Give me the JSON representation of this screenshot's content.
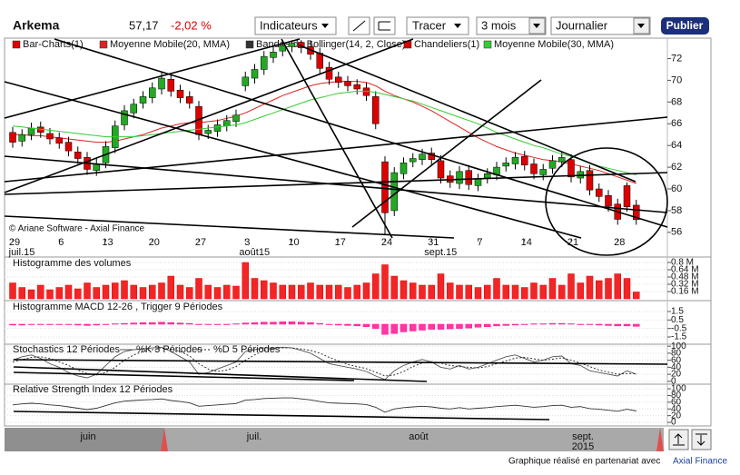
{
  "header": {
    "name": "Arkema",
    "price": "57,17",
    "change": "-2,02 %",
    "menus": [
      "Indicateurs",
      "Tracer",
      "3 mois",
      "Journalier"
    ],
    "button": "Publier"
  },
  "footer": {
    "text": "Graphique réalisé en partenariat avec",
    "link": "Axial Finance"
  },
  "navigator": {
    "labels": [
      "juin",
      "juil.",
      "août",
      "sept."
    ],
    "year": "2015"
  },
  "chart_data": [
    {
      "type": "candlestick",
      "watermark": "© Ariane Software - Axial Finance",
      "categories": [
        "29",
        null,
        null,
        null,
        null,
        "6",
        null,
        null,
        null,
        null,
        "13",
        null,
        null,
        null,
        null,
        "20",
        null,
        null,
        null,
        null,
        "27",
        null,
        null,
        null,
        null,
        "3",
        null,
        null,
        null,
        null,
        "10",
        null,
        null,
        null,
        null,
        "17",
        null,
        null,
        null,
        null,
        "24",
        null,
        null,
        null,
        null,
        "31",
        null,
        null,
        null,
        null,
        "7",
        null,
        null,
        null,
        null,
        "14",
        null,
        null,
        null,
        null,
        "21",
        null,
        null,
        null,
        null,
        "28",
        null,
        null
      ],
      "months": [
        "juil.15",
        "août15",
        "sept.15"
      ],
      "ylim": [
        55.4,
        73.8
      ],
      "yticks": [
        56,
        58,
        60,
        62,
        64,
        66,
        68,
        70,
        72
      ],
      "grid": false,
      "series": [
        {
          "name": "Bar-Charts(1)",
          "color": "#dd0000"
        },
        {
          "name": "Moyenne Mobile(20, MMA)",
          "color": "#dd2222",
          "values": [
            65.0,
            65.0,
            64.9,
            64.9,
            64.8,
            64.7,
            64.6,
            64.5,
            64.4,
            64.3,
            64.3,
            64.4,
            64.6,
            64.8,
            65.0,
            65.3,
            65.6,
            65.8,
            66.0,
            66.1,
            66.1,
            66.2,
            66.3,
            66.5,
            66.7,
            67.0,
            67.4,
            67.8,
            68.2,
            68.6,
            68.9,
            69.2,
            69.5,
            69.7,
            69.8,
            69.9,
            69.9,
            69.9,
            69.8,
            69.5,
            69.0,
            68.6,
            68.3,
            68.0,
            67.6,
            67.2,
            66.7,
            66.2,
            65.7,
            65.2,
            64.7,
            64.3,
            63.9,
            63.6,
            63.3,
            63.1,
            62.9,
            62.7,
            62.6,
            62.5,
            62.3,
            62.1,
            61.9,
            61.7,
            61.4,
            61.1,
            60.8,
            60.5
          ]
        },
        {
          "name": "Bandes de Bollinger(14, 2, Close)",
          "color": "#333333"
        },
        {
          "name": "Chandeliers(1)",
          "color": "#dd0000",
          "up_color": "#22aa22",
          "down_color": "#dd0000",
          "open": [
            65.2,
            64.4,
            65.0,
            65.7,
            65.1,
            64.7,
            64.3,
            63.4,
            62.9,
            61.7,
            62.4,
            63.8,
            65.9,
            67.0,
            67.9,
            68.4,
            69.2,
            70.1,
            69.1,
            68.5,
            67.6,
            65.1,
            65.3,
            65.8,
            66.2,
            69.5,
            70.2,
            71.0,
            72.1,
            72.7,
            73.1,
            73.5,
            73.1,
            72.5,
            71.2,
            70.3,
            69.9,
            69.6,
            69.3,
            68.5,
            62.5,
            58.0,
            61.4,
            62.5,
            62.7,
            63.3,
            62.6,
            61.2,
            60.5,
            61.7,
            60.3,
            61.0,
            61.3,
            62.1,
            62.3,
            63.0,
            62.3,
            61.3,
            61.9,
            62.5,
            62.7,
            61.0,
            61.7,
            60.0,
            59.4,
            58.6,
            60.3,
            58.5
          ],
          "high": [
            65.7,
            65.5,
            66.1,
            66.2,
            65.6,
            65.2,
            64.8,
            63.9,
            63.4,
            62.8,
            64.4,
            66.3,
            67.7,
            68.3,
            69.0,
            69.8,
            70.7,
            70.6,
            69.6,
            69.0,
            68.1,
            65.9,
            66.4,
            66.8,
            67.3,
            70.8,
            71.5,
            72.7,
            73.1,
            73.7,
            73.7,
            73.7,
            73.6,
            73.0,
            71.7,
            70.8,
            70.4,
            70.1,
            69.8,
            69.0,
            63.0,
            62.0,
            62.9,
            63.3,
            63.7,
            63.8,
            63.1,
            61.7,
            62.1,
            62.2,
            61.4,
            61.9,
            62.5,
            62.9,
            63.4,
            63.5,
            62.8,
            62.3,
            63.1,
            63.4,
            63.2,
            62.1,
            62.2,
            60.5,
            59.9,
            59.1,
            60.6,
            59.0
          ],
          "low": [
            63.8,
            63.9,
            64.5,
            64.7,
            64.1,
            63.7,
            63.0,
            62.3,
            61.3,
            61.2,
            61.9,
            63.3,
            65.4,
            66.5,
            67.4,
            67.9,
            68.7,
            68.5,
            67.9,
            67.4,
            64.5,
            64.6,
            64.8,
            65.3,
            65.7,
            69.0,
            69.7,
            70.5,
            71.6,
            72.2,
            72.6,
            72.5,
            71.9,
            70.6,
            69.6,
            69.3,
            69.0,
            68.7,
            68.1,
            65.5,
            55.8,
            57.5,
            60.9,
            62.0,
            62.2,
            62.2,
            60.5,
            60.1,
            60.0,
            59.9,
            59.8,
            60.5,
            60.8,
            61.6,
            61.8,
            61.7,
            60.9,
            60.8,
            61.4,
            62.0,
            60.6,
            60.5,
            59.4,
            58.8,
            57.9,
            56.7,
            57.9,
            56.7
          ],
          "close": [
            64.3,
            65.0,
            65.6,
            65.2,
            64.6,
            64.2,
            63.5,
            62.8,
            61.8,
            62.3,
            63.9,
            65.8,
            67.2,
            67.8,
            68.5,
            69.3,
            70.2,
            69.0,
            68.4,
            67.9,
            65.0,
            65.4,
            65.9,
            66.3,
            66.8,
            70.3,
            71.0,
            72.2,
            72.6,
            73.2,
            73.4,
            73.0,
            72.4,
            71.1,
            70.1,
            69.8,
            69.5,
            69.2,
            68.6,
            66.0,
            57.8,
            61.5,
            62.4,
            62.8,
            63.2,
            62.7,
            61.0,
            60.6,
            61.6,
            60.4,
            60.9,
            61.4,
            62.0,
            62.4,
            62.9,
            62.2,
            61.4,
            61.8,
            62.6,
            62.9,
            61.1,
            61.6,
            59.9,
            59.3,
            58.4,
            57.2,
            58.35,
            57.17
          ]
        },
        {
          "name": "Moyenne Mobile(30, MMA)",
          "color": "#33cc33",
          "values": [
            65.8,
            65.7,
            65.6,
            65.5,
            65.4,
            65.3,
            65.2,
            65.1,
            65.0,
            64.9,
            64.8,
            64.8,
            64.8,
            64.8,
            64.9,
            65.0,
            65.1,
            65.2,
            65.3,
            65.4,
            65.5,
            65.6,
            65.7,
            65.8,
            65.9,
            66.1,
            66.4,
            66.7,
            67.0,
            67.3,
            67.6,
            67.9,
            68.2,
            68.4,
            68.6,
            68.8,
            68.9,
            69.0,
            69.0,
            68.9,
            68.7,
            68.5,
            68.3,
            68.1,
            67.8,
            67.5,
            67.2,
            66.9,
            66.6,
            66.3,
            66.0,
            65.6,
            65.2,
            64.9,
            64.6,
            64.3,
            64.0,
            63.8,
            63.5,
            63.2,
            63.0,
            62.7,
            62.4,
            62.1,
            61.9,
            61.7,
            61.5,
            61.3
          ]
        }
      ]
    },
    {
      "type": "bar",
      "title": "Histogramme des volumes",
      "color": "#ee0000",
      "ylim": [
        0,
        0.88
      ],
      "yticks": [
        {
          "value": 0.16,
          "label": "0.16 M"
        },
        {
          "value": 0.32,
          "label": "0.32 M"
        },
        {
          "value": 0.48,
          "label": "0.48 M"
        },
        {
          "value": 0.64,
          "label": "0.64 M"
        },
        {
          "value": 0.8,
          "label": "0.8 M"
        }
      ],
      "grid": false,
      "values": [
        0.35,
        0.25,
        0.2,
        0.3,
        0.2,
        0.25,
        0.3,
        0.22,
        0.35,
        0.25,
        0.3,
        0.35,
        0.4,
        0.3,
        0.25,
        0.3,
        0.35,
        0.5,
        0.3,
        0.25,
        0.45,
        0.3,
        0.25,
        0.3,
        0.28,
        0.8,
        0.45,
        0.4,
        0.35,
        0.3,
        0.3,
        0.3,
        0.35,
        0.3,
        0.3,
        0.3,
        0.25,
        0.3,
        0.35,
        0.55,
        0.75,
        0.5,
        0.4,
        0.35,
        0.3,
        0.3,
        0.55,
        0.35,
        0.3,
        0.3,
        0.25,
        0.3,
        0.45,
        0.3,
        0.3,
        0.25,
        0.35,
        0.3,
        0.45,
        0.3,
        0.55,
        0.35,
        0.5,
        0.4,
        0.45,
        0.55,
        0.45,
        0.15
      ]
    },
    {
      "type": "bar",
      "title": "Histogramme MACD 12-26 , Trigger 9 Périodes",
      "color": "#ff1493",
      "ylim": [
        -2.25,
        2.57
      ],
      "yticks": [
        -1.5,
        -0.5,
        0.5,
        1.5
      ],
      "grid": false,
      "values": [
        -0.1,
        -0.1,
        -0.05,
        -0.05,
        0,
        0,
        -0.05,
        -0.1,
        -0.15,
        -0.1,
        0,
        0.05,
        0.1,
        0.15,
        0.2,
        0.2,
        0.25,
        0.2,
        0.15,
        0.1,
        0,
        -0.05,
        -0.05,
        0,
        0.05,
        0.15,
        0.2,
        0.25,
        0.25,
        0.3,
        0.3,
        0.25,
        0.2,
        0.1,
        0,
        -0.1,
        -0.15,
        -0.2,
        -0.3,
        -0.5,
        -1.2,
        -1.1,
        -0.9,
        -0.8,
        -0.7,
        -0.6,
        -0.6,
        -0.55,
        -0.5,
        -0.45,
        -0.35,
        -0.3,
        -0.2,
        -0.15,
        -0.1,
        0,
        0.05,
        0.05,
        0.1,
        0.1,
        0.05,
        0,
        -0.05,
        -0.1,
        -0.15,
        -0.2,
        -0.2,
        -0.25
      ]
    },
    {
      "type": "line",
      "title": "Stochastics 12 Périodes",
      "ylim": [
        -3,
        103
      ],
      "yticks": [
        0,
        20,
        40,
        60,
        80,
        100
      ],
      "grid": false,
      "series": [
        {
          "name": "%K 3 Périodes",
          "color": "#555555",
          "dashed": false,
          "values": [
            60,
            70,
            75,
            65,
            50,
            40,
            25,
            15,
            10,
            20,
            45,
            70,
            85,
            90,
            92,
            95,
            97,
            85,
            70,
            55,
            20,
            25,
            35,
            45,
            55,
            85,
            90,
            95,
            95,
            97,
            95,
            88,
            80,
            65,
            50,
            45,
            40,
            35,
            28,
            15,
            5,
            30,
            45,
            55,
            62,
            55,
            40,
            35,
            45,
            35,
            40,
            50,
            60,
            70,
            75,
            65,
            55,
            60,
            70,
            72,
            50,
            45,
            30,
            25,
            20,
            15,
            30,
            20
          ]
        },
        {
          "name": "%D 5 Périodes",
          "color": "#222222",
          "dashed": true,
          "values": [
            55,
            62,
            68,
            70,
            65,
            55,
            45,
            32,
            22,
            18,
            25,
            40,
            60,
            75,
            85,
            90,
            94,
            92,
            85,
            72,
            50,
            35,
            28,
            32,
            42,
            60,
            75,
            88,
            93,
            95,
            95,
            92,
            88,
            80,
            68,
            58,
            48,
            42,
            36,
            26,
            15,
            18,
            28,
            42,
            52,
            56,
            52,
            45,
            42,
            40,
            38,
            42,
            50,
            58,
            66,
            68,
            64,
            60,
            63,
            67,
            60,
            52,
            42,
            32,
            26,
            20,
            22,
            22
          ]
        }
      ]
    },
    {
      "type": "line",
      "title": "Relative Strength Index 12 Périodes",
      "ylim": [
        -8,
        111
      ],
      "yticks": [
        0,
        20,
        40,
        60,
        80,
        100
      ],
      "grid": false,
      "series": [
        {
          "name": "RSI",
          "color": "#333333",
          "dashed": false,
          "values": [
            52,
            55,
            57,
            55,
            52,
            50,
            46,
            42,
            38,
            42,
            50,
            58,
            63,
            65,
            67,
            68,
            70,
            65,
            62,
            58,
            48,
            50,
            52,
            54,
            56,
            66,
            68,
            71,
            72,
            73,
            73,
            70,
            67,
            62,
            58,
            57,
            56,
            55,
            53,
            45,
            30,
            40,
            44,
            46,
            48,
            46,
            42,
            40,
            44,
            40,
            42,
            44,
            47,
            49,
            51,
            48,
            45,
            47,
            50,
            51,
            45,
            47,
            41,
            39,
            36,
            33,
            39,
            34
          ]
        }
      ]
    }
  ]
}
